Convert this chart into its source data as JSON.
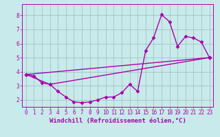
{
  "bg_color": "#c8eaea",
  "line_color": "#aa00aa",
  "marker": "D",
  "markersize": 2.5,
  "linewidth": 1.0,
  "xlabel": "Windchill (Refroidissement éolien,°C)",
  "xlabel_fontsize": 6.5,
  "tick_fontsize": 5.5,
  "xlim": [
    -0.5,
    23.5
  ],
  "ylim": [
    1.5,
    8.8
  ],
  "yticks": [
    2,
    3,
    4,
    5,
    6,
    7,
    8
  ],
  "xticks": [
    0,
    1,
    2,
    3,
    4,
    5,
    6,
    7,
    8,
    9,
    10,
    11,
    12,
    13,
    14,
    15,
    16,
    17,
    18,
    19,
    20,
    21,
    22,
    23
  ],
  "grid_color": "#99bbbb",
  "series1_x": [
    0,
    1,
    2,
    3,
    4,
    5,
    6,
    7,
    8,
    9,
    10,
    11,
    12,
    13,
    14,
    15,
    16,
    17,
    18,
    19,
    20,
    21,
    22,
    23
  ],
  "series1_y": [
    3.8,
    3.7,
    3.2,
    3.1,
    2.6,
    2.2,
    1.85,
    1.8,
    1.85,
    2.0,
    2.2,
    2.2,
    2.5,
    3.1,
    2.6,
    5.5,
    6.4,
    8.05,
    7.55,
    5.8,
    6.5,
    6.4,
    6.1,
    5.0
  ],
  "series2_x": [
    0,
    23
  ],
  "series2_y": [
    3.8,
    5.0
  ],
  "series3_x": [
    0,
    3,
    23
  ],
  "series3_y": [
    3.8,
    3.1,
    5.0
  ]
}
